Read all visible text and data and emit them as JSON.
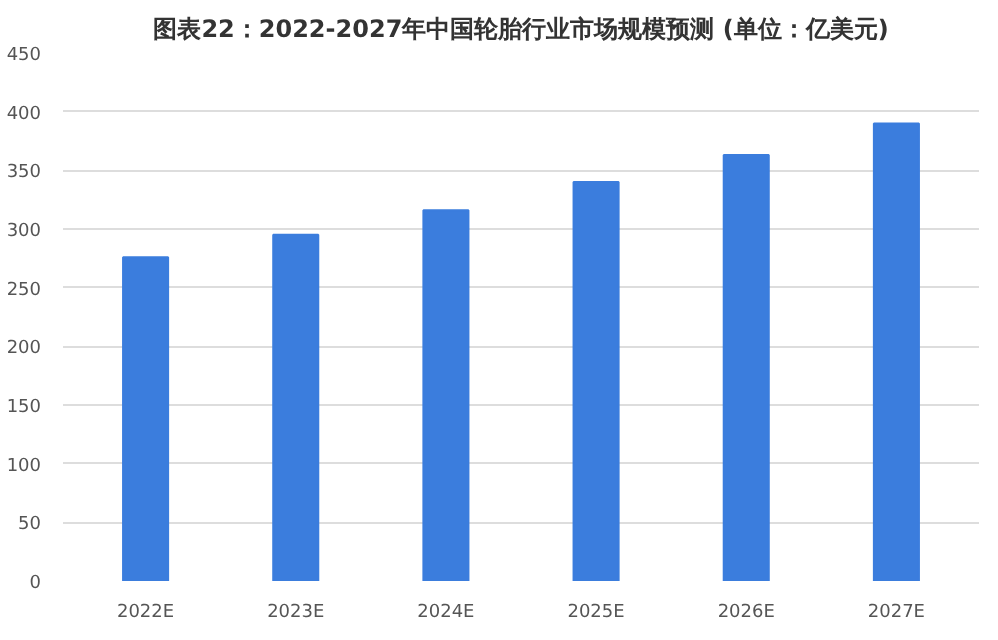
{
  "chart_data": {
    "type": "bar",
    "title": "图表22：2022-2027年中国轮胎行业市场规模预测 (单位：亿美元)",
    "categories": [
      "2022E",
      "2023E",
      "2024E",
      "2025E",
      "2026E",
      "2027E"
    ],
    "values": [
      276,
      295,
      316,
      340,
      363,
      390
    ],
    "color": "#3b7ddd",
    "ylim": [
      0,
      450
    ],
    "yticks": [
      0,
      50,
      100,
      150,
      200,
      250,
      300,
      350,
      400,
      450
    ],
    "grid": "y"
  }
}
